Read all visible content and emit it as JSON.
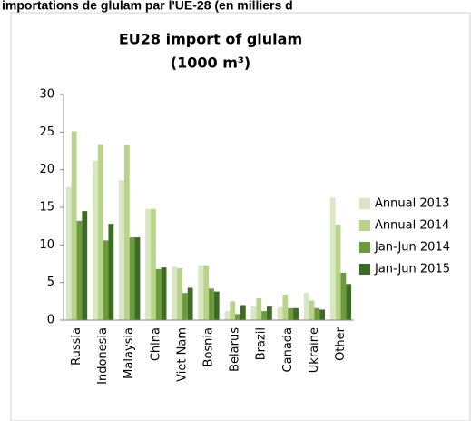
{
  "chart_data": {
    "type": "bar",
    "heading": "importations de glulam par l'UE-28 (en milliers d",
    "title": "EU28 import of glulam",
    "subtitle": "(1000 m³)",
    "categories": [
      "Russia",
      "Indonesia",
      "Malaysia",
      "China",
      "Viet Nam",
      "Bosnia",
      "Belarus",
      "Brazil",
      "Canada",
      "Ukraine",
      "Other"
    ],
    "series": [
      {
        "name": "Annual 2013",
        "color": "#d9e7c2",
        "values": [
          17.7,
          21.2,
          18.6,
          14.8,
          7.1,
          7.3,
          1.2,
          1.8,
          1.7,
          3.6,
          16.3
        ]
      },
      {
        "name": "Annual 2014",
        "color": "#b8d38a",
        "values": [
          25.1,
          23.4,
          23.3,
          14.8,
          6.9,
          7.3,
          2.5,
          2.9,
          3.4,
          2.6,
          12.7
        ]
      },
      {
        "name": "Jan-Jun 2014",
        "color": "#6b9b3a",
        "values": [
          13.2,
          10.6,
          11,
          6.8,
          3.6,
          4.2,
          0.8,
          1.2,
          1.6,
          1.6,
          6.3
        ]
      },
      {
        "name": "Jan-Jun 2015",
        "color": "#3e6b23",
        "values": [
          14.5,
          12.8,
          11,
          7,
          4.3,
          3.8,
          2,
          1.8,
          1.6,
          1.4,
          4.8
        ]
      }
    ],
    "ylim": [
      0,
      30
    ],
    "yticks": [
      0,
      5,
      10,
      15,
      20,
      25,
      30
    ],
    "legend": "right"
  }
}
